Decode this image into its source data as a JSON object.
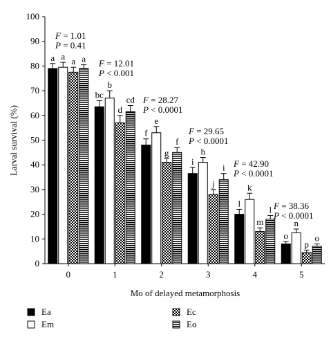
{
  "chart_data": {
    "type": "bar",
    "y_label": "Larval survival (%)",
    "x_label": "Mo of delayed metamorphosis",
    "categories": [
      "0",
      "1",
      "2",
      "3",
      "4",
      "5"
    ],
    "ylim": [
      0,
      100
    ],
    "yticks": [
      0,
      10,
      20,
      30,
      40,
      50,
      60,
      70,
      80,
      90,
      100
    ],
    "grid": false,
    "series": [
      {
        "name": "Ea",
        "color": "#000000",
        "pattern": "solid",
        "values": [
          79,
          63.5,
          48,
          36.5,
          20,
          8
        ],
        "errors": [
          2,
          2.5,
          2.5,
          2.5,
          2,
          1
        ],
        "letters": [
          "a",
          "bc",
          "f",
          "i",
          "l",
          "o"
        ]
      },
      {
        "name": "Em",
        "color": "#ffffff",
        "pattern": "solid",
        "values": [
          79.5,
          67,
          53,
          41,
          26,
          12.5
        ],
        "errors": [
          2,
          3,
          2.5,
          2,
          2.5,
          1.5
        ],
        "letters": [
          "a",
          "b",
          "e",
          "h",
          "k",
          "n"
        ]
      },
      {
        "name": "Ec",
        "color": "#000000",
        "pattern": "crosshatch",
        "values": [
          77.5,
          57,
          41,
          28,
          13,
          4.5
        ],
        "errors": [
          2,
          3,
          1.5,
          2,
          1.5,
          1
        ],
        "letters": [
          "a",
          "d",
          "g",
          "j",
          "m",
          "p"
        ]
      },
      {
        "name": "Eo",
        "color": "#000000",
        "pattern": "hstripe",
        "values": [
          79,
          61.5,
          45,
          34,
          18,
          7
        ],
        "errors": [
          1.5,
          2.5,
          2,
          2.5,
          1.5,
          1
        ],
        "letters": [
          "a",
          "cd",
          "f",
          "i",
          "l",
          "o"
        ]
      }
    ],
    "annotations": [
      [
        {
          "symbol": "F",
          "text": " = 1.01"
        },
        {
          "symbol": "P",
          "text": " = 0.41"
        }
      ],
      [
        {
          "symbol": "F",
          "text": " = 12.01"
        },
        {
          "symbol": "P",
          "text": " < 0.001"
        }
      ],
      [
        {
          "symbol": "F",
          "text": " = 28.27"
        },
        {
          "symbol": "P",
          "text": " < 0.0001"
        }
      ],
      [
        {
          "symbol": "F",
          "text": " = 29.65"
        },
        {
          "symbol": "P",
          "text": " < 0.0001"
        }
      ],
      [
        {
          "symbol": "F",
          "text": " = 42.90"
        },
        {
          "symbol": "P",
          "text": " < 0.0001"
        }
      ],
      [
        {
          "symbol": "F",
          "text": " = 38.36"
        },
        {
          "symbol": "P",
          "text": " < 0.0001"
        }
      ]
    ]
  }
}
